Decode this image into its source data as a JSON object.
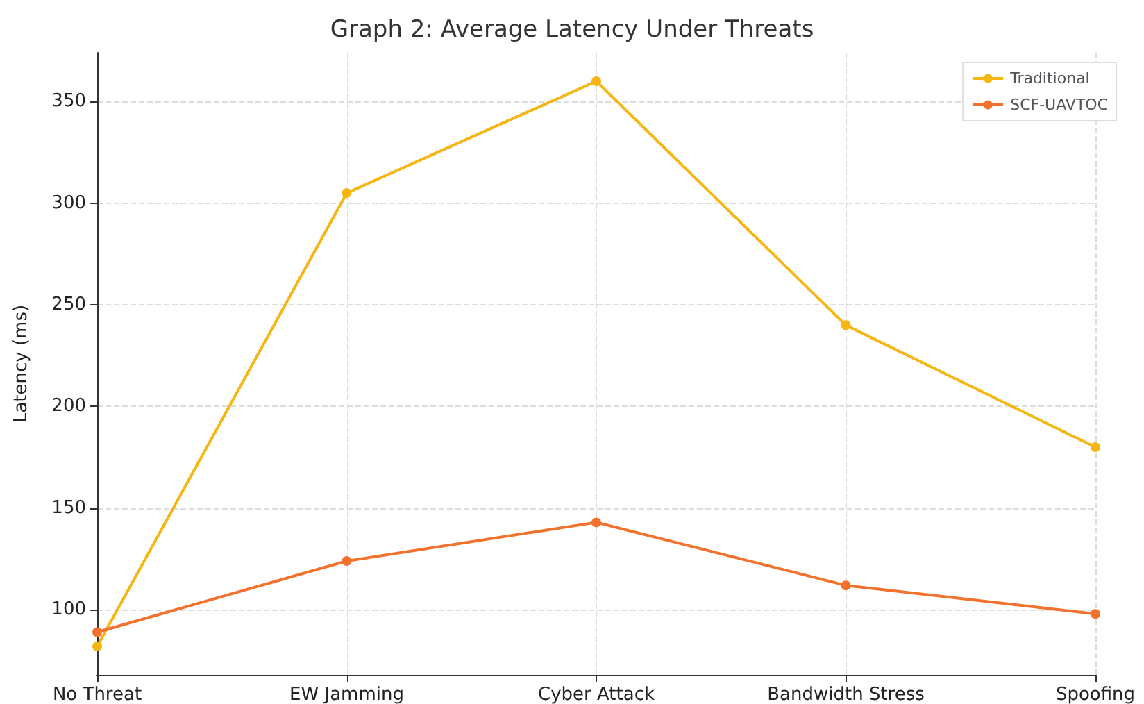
{
  "chart_data": {
    "type": "line",
    "title": "Graph 2: Average Latency Under Threats",
    "ylabel": "Latency (ms)",
    "categories": [
      "No Threat",
      "EW Jamming",
      "Cyber Attack",
      "Bandwidth Stress",
      "Spoofing"
    ],
    "series": [
      {
        "name": "Traditional",
        "color": "#f7b512",
        "values": [
          82,
          305,
          360,
          240,
          180
        ]
      },
      {
        "name": "SCF-UAVTOC",
        "color": "#f2712d",
        "values": [
          89,
          124,
          143,
          112,
          98
        ]
      }
    ],
    "ylim": [
      68,
      374
    ],
    "yticks": [
      100,
      150,
      200,
      250,
      300,
      350
    ],
    "grid": true,
    "legend": "top right",
    "marker": "circle",
    "line_style": "solid"
  }
}
